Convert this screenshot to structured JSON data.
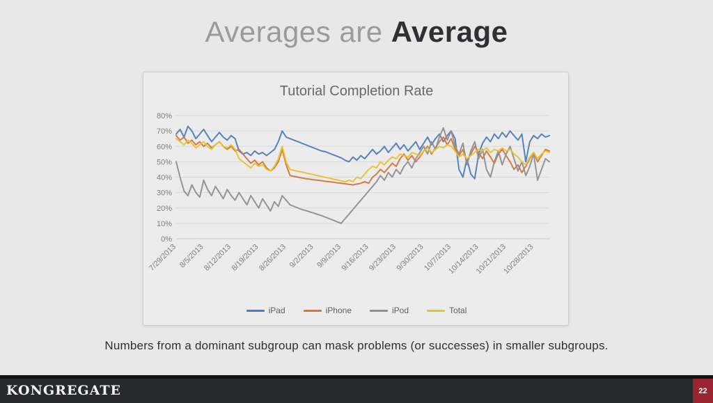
{
  "slide": {
    "title": {
      "regular": "Averages are",
      "bold": "Average"
    },
    "caption": "Numbers from a dominant subgroup can mask problems (or successes) in smaller subgroups."
  },
  "footer": {
    "brand": "KONGREGATE",
    "page_number": "22",
    "bar_color": "#27292e",
    "badge_color": "#9a2430"
  },
  "chart_data": {
    "type": "line",
    "title": "Tutorial Completion Rate",
    "x_tick_labels": [
      "7/29/2013",
      "8/5/2013",
      "8/12/2013",
      "8/19/2013",
      "8/26/2013",
      "9/2/2013",
      "9/9/2013",
      "9/16/2013",
      "9/23/2013",
      "9/30/2013",
      "10/7/2013",
      "10/14/2013",
      "10/21/2013",
      "10/28/2013"
    ],
    "x_tick_indices": [
      0,
      7,
      14,
      21,
      28,
      35,
      42,
      49,
      56,
      63,
      70,
      77,
      84,
      91
    ],
    "ylim": [
      0,
      80
    ],
    "y_tick_step": 10,
    "y_tick_suffix": "%",
    "grid": true,
    "legend_position": "bottom",
    "series": [
      {
        "name": "iPad",
        "color": "#4f7cba",
        "values": [
          68,
          71,
          66,
          73,
          70,
          65,
          68,
          71,
          67,
          63,
          66,
          69,
          66,
          64,
          67,
          65,
          57,
          55,
          56,
          54,
          57,
          55,
          56,
          54,
          56,
          58,
          63,
          70,
          66,
          65,
          64,
          63,
          62,
          61,
          60,
          59,
          58,
          57,
          56.5,
          55.5,
          54.5,
          53.5,
          52.5,
          51,
          50,
          53,
          51,
          54,
          52,
          55,
          58,
          55,
          57,
          60,
          56,
          59,
          62,
          58,
          61,
          57,
          60,
          63,
          58,
          62,
          66,
          61,
          65,
          68,
          63,
          67,
          70,
          65,
          45,
          40,
          52,
          42,
          39,
          55,
          62,
          66,
          63,
          68,
          65,
          69,
          66,
          70,
          67,
          64,
          68,
          50,
          63,
          67,
          65,
          68,
          66,
          67
        ]
      },
      {
        "name": "iPhone",
        "color": "#d4763b",
        "values": [
          67,
          64,
          66,
          62,
          64,
          61,
          63,
          60,
          62,
          59,
          61,
          63,
          60,
          58,
          60,
          57,
          58,
          55,
          52,
          49,
          51,
          48,
          50,
          46,
          44,
          46,
          50,
          58,
          48,
          41,
          40.5,
          40,
          39.5,
          39,
          38.7,
          38.3,
          38,
          37.7,
          37.3,
          37,
          36.7,
          36.3,
          36,
          35.7,
          35.3,
          35,
          35.5,
          36,
          37,
          36,
          40,
          42,
          45,
          43,
          46,
          49,
          47,
          52,
          55,
          51,
          54,
          50,
          53,
          57,
          60,
          55,
          59,
          63,
          66,
          61,
          65,
          58,
          54,
          58,
          50,
          55,
          60,
          56,
          52,
          57,
          53,
          49,
          55,
          58,
          54,
          50,
          45,
          48,
          43,
          47,
          52,
          56,
          50,
          54,
          58,
          57
        ]
      },
      {
        "name": "iPod",
        "color": "#8f8f8f",
        "values": [
          50,
          40,
          31,
          28,
          35,
          30,
          27,
          38,
          32,
          28,
          34,
          30,
          26,
          32,
          28,
          25,
          30,
          26,
          22,
          28,
          24,
          20,
          26,
          22,
          18,
          24,
          21,
          28,
          25,
          22,
          21,
          20,
          19,
          18.3,
          17.5,
          16.7,
          15.8,
          15,
          14,
          13,
          12,
          11,
          10,
          13,
          16,
          19,
          22,
          25,
          28,
          31,
          34,
          37,
          41,
          38,
          43,
          40,
          45,
          42,
          47,
          50,
          46,
          52,
          56,
          60,
          55,
          63,
          58,
          66,
          72,
          64,
          70,
          60,
          55,
          62,
          48,
          57,
          63,
          52,
          58,
          45,
          40,
          50,
          57,
          48,
          55,
          60,
          52,
          44,
          50,
          41,
          47,
          55,
          38,
          45,
          52,
          50
        ]
      },
      {
        "name": "Total",
        "color": "#e8c22e",
        "values": [
          65,
          63,
          61,
          64,
          62,
          59,
          61,
          63,
          60,
          58,
          61,
          63,
          60,
          59,
          61,
          58,
          52,
          50,
          48,
          46,
          49,
          47,
          48,
          45,
          44,
          47,
          52,
          60,
          50,
          45,
          44.4,
          43.8,
          43.3,
          42.7,
          42.1,
          41.6,
          41,
          40.4,
          39.9,
          39.3,
          38.7,
          38.2,
          37.6,
          37,
          38,
          37,
          40,
          39,
          42,
          45,
          47,
          46,
          50,
          48,
          51,
          53,
          52,
          55,
          54,
          53,
          56,
          55,
          54,
          57,
          59,
          56,
          58,
          60,
          59,
          61,
          60,
          57,
          53,
          55,
          52,
          54,
          56,
          58,
          57,
          59,
          56,
          58,
          57,
          59,
          57,
          58,
          55,
          53,
          50,
          48,
          53,
          56,
          52,
          55,
          57,
          56
        ]
      }
    ]
  }
}
